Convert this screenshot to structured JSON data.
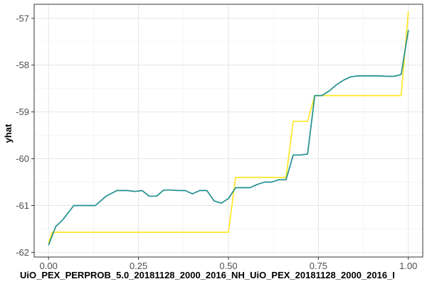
{
  "chart_data": {
    "type": "line",
    "title": "",
    "xlabel": "UiO_PEX_PERPROB_5.0_20181128_2000_2016_NH_UiO_PEX_20181128_2000_2016_I",
    "ylabel": "yhat",
    "xlim": [
      -0.04,
      1.04
    ],
    "ylim": [
      -62.1,
      -56.7
    ],
    "x_ticks": [
      0.0,
      0.25,
      0.5,
      0.75,
      1.0
    ],
    "x_tick_labels": [
      "0.00",
      "0.25",
      "0.50",
      "0.75",
      "1.00"
    ],
    "y_ticks": [
      -62,
      -61,
      -60,
      -59,
      -58,
      -57
    ],
    "y_tick_labels": [
      "-62",
      "-61",
      "-60",
      "-59",
      "-58",
      "-57"
    ],
    "grid": true,
    "legend": "none",
    "series": [
      {
        "color": "#fde725",
        "x": [
          0.0,
          0.01,
          0.5,
          0.52,
          0.66,
          0.68,
          0.72,
          0.74,
          0.98,
          1.0
        ],
        "y": [
          -61.8,
          -61.57,
          -61.57,
          -60.4,
          -60.4,
          -59.2,
          -59.2,
          -58.65,
          -58.65,
          -56.85
        ]
      },
      {
        "color": "#21908c",
        "x": [
          0.0,
          0.02,
          0.04,
          0.07,
          0.1,
          0.13,
          0.16,
          0.19,
          0.22,
          0.24,
          0.26,
          0.28,
          0.3,
          0.32,
          0.34,
          0.36,
          0.38,
          0.4,
          0.42,
          0.44,
          0.46,
          0.48,
          0.5,
          0.52,
          0.54,
          0.56,
          0.58,
          0.6,
          0.62,
          0.64,
          0.66,
          0.68,
          0.7,
          0.72,
          0.74,
          0.76,
          0.78,
          0.8,
          0.82,
          0.84,
          0.86,
          0.88,
          0.9,
          0.92,
          0.94,
          0.96,
          0.98,
          1.0
        ],
        "y": [
          -61.85,
          -61.45,
          -61.3,
          -61.0,
          -61.0,
          -61.0,
          -60.8,
          -60.68,
          -60.68,
          -60.7,
          -60.68,
          -60.8,
          -60.8,
          -60.67,
          -60.67,
          -60.68,
          -60.68,
          -60.75,
          -60.68,
          -60.68,
          -60.9,
          -60.95,
          -60.85,
          -60.62,
          -60.62,
          -60.62,
          -60.55,
          -60.5,
          -60.5,
          -60.45,
          -60.45,
          -59.92,
          -59.92,
          -59.9,
          -58.65,
          -58.65,
          -58.55,
          -58.42,
          -58.32,
          -58.25,
          -58.23,
          -58.23,
          -58.23,
          -58.23,
          -58.24,
          -58.24,
          -58.2,
          -57.25
        ]
      }
    ]
  }
}
